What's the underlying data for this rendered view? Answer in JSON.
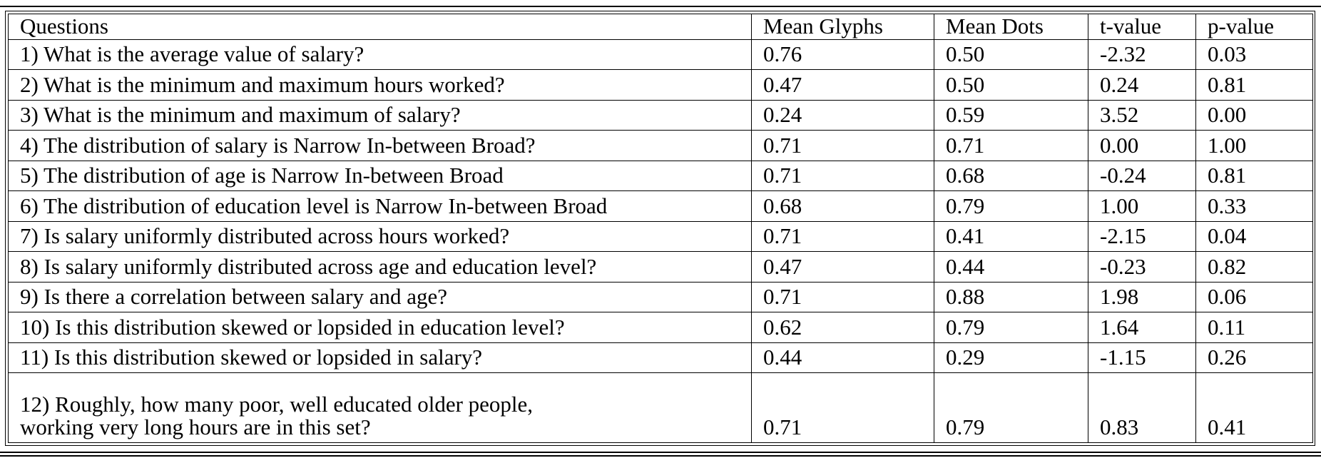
{
  "table": {
    "headers": {
      "question": "Questions",
      "mean_glyphs": "Mean Glyphs",
      "mean_dots": "Mean Dots",
      "t_value": "t-value",
      "p_value": "p-value"
    },
    "rows": [
      {
        "question": "1) What is the average value of salary?",
        "mean_glyphs": "0.76",
        "mean_dots": "0.50",
        "t_value": "-2.32",
        "p_value": "0.03"
      },
      {
        "question": "2) What is the minimum and maximum hours worked?",
        "mean_glyphs": "0.47",
        "mean_dots": "0.50",
        "t_value": "0.24",
        "p_value": "0.81"
      },
      {
        "question": "3) What is the minimum and maximum of salary?",
        "mean_glyphs": "0.24",
        "mean_dots": "0.59",
        "t_value": "3.52",
        "p_value": "0.00"
      },
      {
        "question": "4) The distribution of salary is Narrow In-between Broad?",
        "mean_glyphs": "0.71",
        "mean_dots": "0.71",
        "t_value": "0.00",
        "p_value": "1.00"
      },
      {
        "question": "5) The distribution of age is Narrow In-between Broad",
        "mean_glyphs": "0.71",
        "mean_dots": "0.68",
        "t_value": "-0.24",
        "p_value": "0.81"
      },
      {
        "question": "6) The distribution of education level is Narrow In-between Broad",
        "mean_glyphs": "0.68",
        "mean_dots": "0.79",
        "t_value": "1.00",
        "p_value": "0.33"
      },
      {
        "question": "7) Is salary uniformly distributed across hours worked?",
        "mean_glyphs": "0.71",
        "mean_dots": "0.41",
        "t_value": "-2.15",
        "p_value": "0.04"
      },
      {
        "question": "8) Is salary uniformly distributed across age and education level?",
        "mean_glyphs": "0.47",
        "mean_dots": "0.44",
        "t_value": "-0.23",
        "p_value": "0.82"
      },
      {
        "question": "9) Is there a correlation between salary and age?",
        "mean_glyphs": "0.71",
        "mean_dots": "0.88",
        "t_value": "1.98",
        "p_value": "0.06"
      },
      {
        "question": "10) Is this distribution skewed or lopsided in education level?",
        "mean_glyphs": "0.62",
        "mean_dots": "0.79",
        "t_value": "1.64",
        "p_value": "0.11"
      },
      {
        "question": "11) Is this distribution skewed or lopsided in salary?",
        "mean_glyphs": "0.44",
        "mean_dots": "0.29",
        "t_value": "-1.15",
        "p_value": "0.26"
      },
      {
        "question_lines": [
          "12) Roughly, how many poor, well educated older people,",
          "working very long hours are in this set?"
        ],
        "mean_glyphs": "0.71",
        "mean_dots": "0.79",
        "t_value": "0.83",
        "p_value": "0.41"
      }
    ]
  }
}
